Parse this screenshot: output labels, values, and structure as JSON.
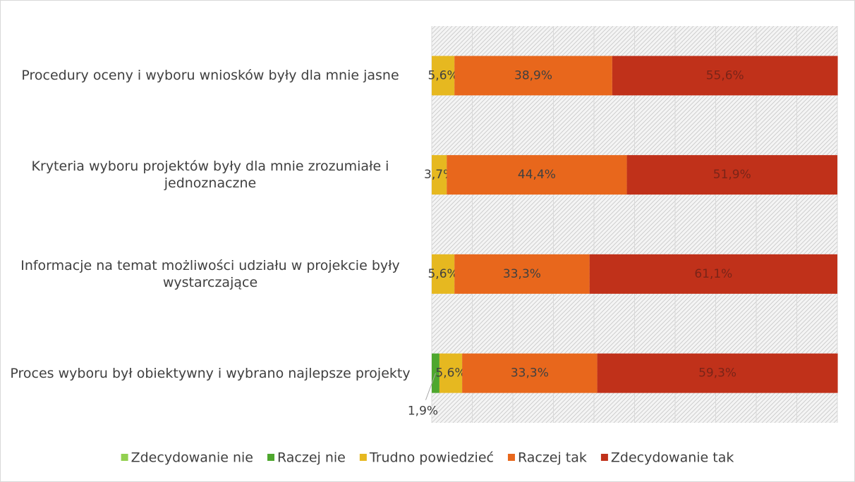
{
  "chart_data": {
    "type": "stacked_bar_horizontal",
    "categories": [
      "Procedury oceny i wyboru wniosków były dla mnie jasne",
      "Kryteria wyboru projektów były dla mnie zrozumiałe i jednoznaczne",
      "Informacje na temat możliwości udziału w projekcie były wystarczające",
      "Proces wyboru był obiektywny i wybrano najlepsze projekty"
    ],
    "series": [
      {
        "name": "Zdecydowanie nie",
        "color": "#92d050",
        "values": [
          null,
          null,
          null,
          null
        ],
        "value_labels": [
          null,
          null,
          null,
          null
        ]
      },
      {
        "name": "Raczej nie",
        "color": "#4ea72e",
        "values": [
          null,
          null,
          null,
          1.9
        ],
        "value_labels": [
          null,
          null,
          null,
          "1,9%"
        ]
      },
      {
        "name": "Trudno powiedzieć",
        "color": "#e6b820",
        "values": [
          5.6,
          3.7,
          5.6,
          5.6
        ],
        "value_labels": [
          "5,6%",
          "3,7%",
          "5,6%",
          "5,6%"
        ]
      },
      {
        "name": "Raczej tak",
        "color": "#e8671c",
        "values": [
          38.9,
          44.4,
          33.3,
          33.3
        ],
        "value_labels": [
          "38,9%",
          "44,4%",
          "33,3%",
          "33,3%"
        ]
      },
      {
        "name": "Zdecydowanie tak",
        "color": "#c0311a",
        "values": [
          55.6,
          51.9,
          61.1,
          59.3
        ],
        "value_labels": [
          "55,6%",
          "51,9%",
          "61,1%",
          "59,3%"
        ]
      }
    ],
    "xlim": [
      0,
      100
    ],
    "xticks": [
      0,
      10,
      20,
      30,
      40,
      50,
      60,
      70,
      80,
      90,
      100
    ],
    "grid": true,
    "legend": "bottom"
  }
}
